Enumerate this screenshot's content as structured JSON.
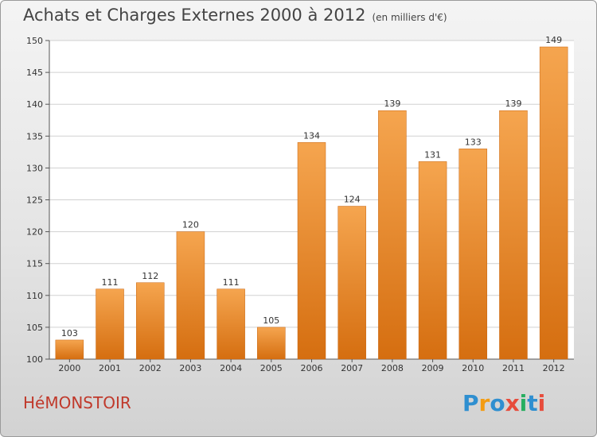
{
  "header": {
    "title": "Achats et Charges Externes 2000 à 2012",
    "subtitle": "(en milliers d'€)"
  },
  "footer": {
    "commune": "HéMONSTOIR",
    "logo_text": "Proxiti"
  },
  "colors": {
    "bar_light": "#f5a54f",
    "bar_dark": "#d56e10",
    "commune": "#c0392b"
  },
  "chart_data": {
    "type": "bar",
    "title": "Achats et Charges Externes 2000 à 2012",
    "subtitle": "(en milliers d'€)",
    "xlabel": "",
    "ylabel": "",
    "categories": [
      "2000",
      "2001",
      "2002",
      "2003",
      "2004",
      "2005",
      "2006",
      "2007",
      "2008",
      "2009",
      "2010",
      "2011",
      "2012"
    ],
    "values": [
      103,
      111,
      112,
      120,
      111,
      105,
      134,
      124,
      139,
      131,
      133,
      139,
      149
    ],
    "ylim": [
      100,
      150
    ],
    "yticks": [
      100,
      105,
      110,
      115,
      120,
      125,
      130,
      135,
      140,
      145,
      150
    ],
    "grid": true,
    "data_labels": true
  }
}
